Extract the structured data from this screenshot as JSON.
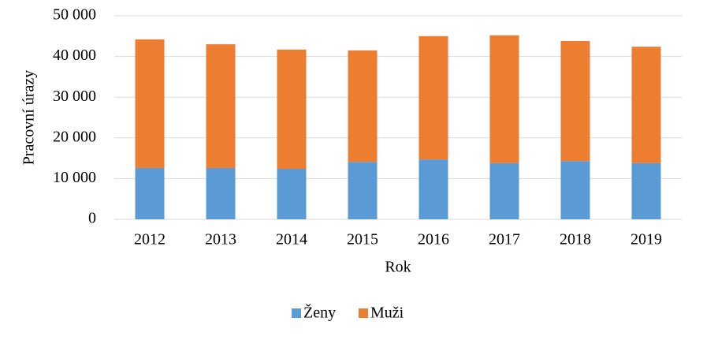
{
  "chart_data": {
    "type": "stacked_bar",
    "x_label": "Rok",
    "y_label": "Pracovní úrazy",
    "categories": [
      "2012",
      "2013",
      "2014",
      "2015",
      "2016",
      "2017",
      "2018",
      "2019"
    ],
    "series": [
      {
        "name": "Ženy",
        "color": "#5b9bd5",
        "values": [
          12600,
          12600,
          12400,
          14100,
          14700,
          13800,
          14300,
          13800
        ]
      },
      {
        "name": "Muži",
        "color": "#ed7d31",
        "values": [
          31600,
          30400,
          29300,
          27400,
          30300,
          31400,
          29500,
          28600
        ]
      }
    ],
    "ylim": [
      0,
      50000
    ],
    "yticks": [
      0,
      {
        "value": 10000,
        "label": "10 000"
      },
      {
        "value": 20000,
        "label": "20 000"
      },
      {
        "value": 30000,
        "label": "30 000"
      },
      {
        "value": 40000,
        "label": "40 000"
      },
      {
        "value": 50000,
        "label": "50 000"
      }
    ],
    "grid": true,
    "legend": "bottom"
  }
}
